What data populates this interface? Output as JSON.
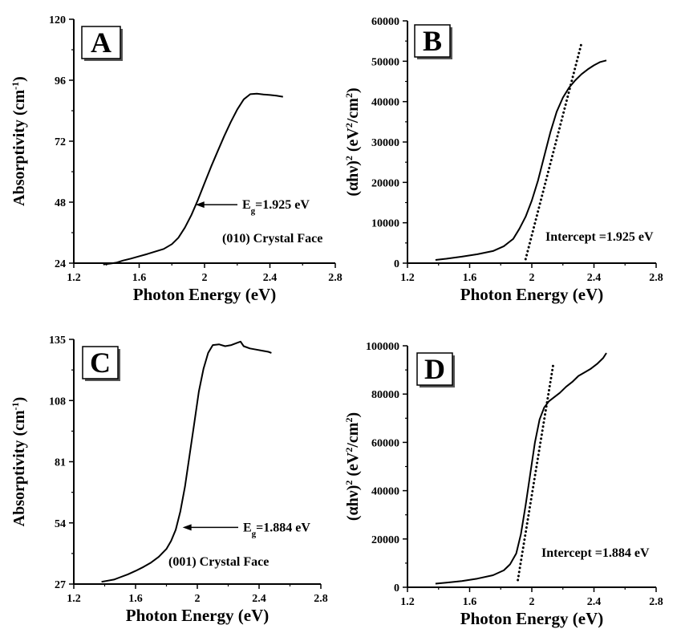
{
  "chart_data": [
    {
      "id": "A",
      "type": "line",
      "panel_label": "A",
      "xlabel": "Photon Energy (eV)",
      "ylabel_main": "Absorptivity (cm",
      "ylabel_sup": "-1",
      "ylabel_close": ")",
      "xlim": [
        1.2,
        2.8
      ],
      "ylim": [
        24,
        120
      ],
      "xticks": [
        1.2,
        1.6,
        2.0,
        2.4,
        2.8
      ],
      "xtick_labels": [
        "1.2",
        "1.6",
        "2",
        "2.4",
        "2.8"
      ],
      "yticks": [
        24,
        48,
        72,
        96,
        120
      ],
      "ytick_labels": [
        "24",
        "48",
        "72",
        "96",
        "120"
      ],
      "series": [
        {
          "style": "solid",
          "x": [
            1.38,
            1.42,
            1.46,
            1.5,
            1.55,
            1.6,
            1.65,
            1.7,
            1.75,
            1.8,
            1.84,
            1.88,
            1.92,
            1.96,
            2.0,
            2.04,
            2.08,
            2.12,
            2.16,
            2.2,
            2.24,
            2.28,
            2.32,
            2.36,
            2.4,
            2.44,
            2.48
          ],
          "y": [
            23.5,
            23.8,
            24.2,
            25,
            25.8,
            26.7,
            27.6,
            28.6,
            29.6,
            31.5,
            34,
            38,
            43,
            49,
            55.5,
            62,
            68,
            74,
            79.5,
            84.5,
            88.5,
            90.5,
            90.7,
            90.4,
            90.2,
            89.9,
            89.5
          ]
        }
      ],
      "annotation": {
        "text_main": "E",
        "text_sub": "g",
        "text_rest": "=1.925 eV",
        "arrow_to": [
          1.925,
          47
        ]
      },
      "note": "(010)  Crystal Face"
    },
    {
      "id": "B",
      "type": "line",
      "panel_label": "B",
      "xlabel": "Photon Energy (eV)",
      "ylabel_main": "(αhν)",
      "ylabel_sup": "2",
      "ylabel_rest": " (eV",
      "ylabel_sup2": "2",
      "ylabel_close": "/cm",
      "ylabel_sup3": "2",
      "ylabel_end": ")",
      "xlim": [
        1.2,
        2.8
      ],
      "ylim": [
        0,
        60000
      ],
      "xticks": [
        1.2,
        1.6,
        2.0,
        2.4,
        2.8
      ],
      "xtick_labels": [
        "1.2",
        "1.6",
        "2",
        "2.4",
        "2.8"
      ],
      "yticks": [
        0,
        10000,
        20000,
        30000,
        40000,
        50000,
        60000
      ],
      "ytick_labels": [
        "0",
        "10000",
        "20000",
        "30000",
        "40000",
        "50000",
        "60000"
      ],
      "series": [
        {
          "style": "solid",
          "x": [
            1.38,
            1.45,
            1.55,
            1.65,
            1.75,
            1.82,
            1.88,
            1.92,
            1.96,
            2.0,
            2.04,
            2.08,
            2.12,
            2.16,
            2.2,
            2.24,
            2.28,
            2.32,
            2.36,
            2.4,
            2.44,
            2.48
          ],
          "y": [
            800,
            1100,
            1600,
            2200,
            3000,
            4200,
            6000,
            8500,
            11500,
            15500,
            20500,
            26500,
            32500,
            37500,
            41000,
            43500,
            45300,
            46800,
            48000,
            49000,
            49800,
            50200
          ]
        },
        {
          "style": "dotted",
          "x": [
            1.96,
            2.32
          ],
          "y": [
            1000,
            54500
          ]
        }
      ],
      "annotation_text": "Intercept =1.925  eV"
    },
    {
      "id": "C",
      "type": "line",
      "panel_label": "C",
      "xlabel": "Photon Energy (eV)",
      "ylabel_main": "Absorptivity (cm",
      "ylabel_sup": "-1",
      "ylabel_close": ")",
      "xlim": [
        1.2,
        2.8
      ],
      "ylim": [
        27,
        135
      ],
      "xticks": [
        1.2,
        1.6,
        2.0,
        2.4,
        2.8
      ],
      "xtick_labels": [
        "1.2",
        "1.6",
        "2",
        "2.4",
        "2.8"
      ],
      "yticks": [
        27,
        54,
        81,
        108,
        135
      ],
      "ytick_labels": [
        "27",
        "54",
        "81",
        "108",
        "135"
      ],
      "series": [
        {
          "style": "solid",
          "x": [
            1.38,
            1.42,
            1.46,
            1.5,
            1.55,
            1.6,
            1.65,
            1.7,
            1.75,
            1.8,
            1.83,
            1.86,
            1.89,
            1.92,
            1.95,
            1.98,
            2.01,
            2.04,
            2.07,
            2.1,
            2.14,
            2.18,
            2.22,
            2.26,
            2.28,
            2.3,
            2.34,
            2.38,
            2.42,
            2.46,
            2.48
          ],
          "y": [
            28,
            28.5,
            29,
            30,
            31.3,
            32.8,
            34.5,
            36.5,
            39,
            42.5,
            46,
            51,
            59,
            70,
            84,
            98,
            112,
            122,
            129,
            132.5,
            132.8,
            132,
            132.5,
            133.5,
            134,
            132,
            131,
            130.5,
            130,
            129.5,
            129
          ]
        }
      ],
      "annotation": {
        "text_main": "E",
        "text_sub": "g",
        "text_rest": "=1.884 eV",
        "arrow_to": [
          1.884,
          52
        ]
      },
      "note": "(001)  Crystal Face"
    },
    {
      "id": "D",
      "type": "line",
      "panel_label": "D",
      "xlabel": "Photon Energy (eV)",
      "ylabel_main": "(αhν)",
      "ylabel_sup": "2",
      "ylabel_rest": " (eV",
      "ylabel_sup2": "2",
      "ylabel_close": "/cm",
      "ylabel_sup3": "2",
      "ylabel_end": ")",
      "xlim": [
        1.2,
        2.8
      ],
      "ylim": [
        0,
        100000
      ],
      "xticks": [
        1.2,
        1.6,
        2.0,
        2.4,
        2.8
      ],
      "xtick_labels": [
        "1.2",
        "1.6",
        "2",
        "2.4",
        "2.8"
      ],
      "yticks": [
        0,
        20000,
        40000,
        60000,
        80000,
        100000
      ],
      "ytick_labels": [
        "0",
        "20000",
        "40000",
        "60000",
        "80000",
        "100000"
      ],
      "series": [
        {
          "style": "solid",
          "x": [
            1.38,
            1.45,
            1.55,
            1.65,
            1.75,
            1.82,
            1.86,
            1.9,
            1.93,
            1.96,
            1.99,
            2.02,
            2.05,
            2.08,
            2.11,
            2.14,
            2.18,
            2.22,
            2.26,
            2.3,
            2.34,
            2.38,
            2.42,
            2.46,
            2.48
          ],
          "y": [
            1500,
            1900,
            2600,
            3600,
            5000,
            7000,
            9500,
            14000,
            22000,
            34000,
            47000,
            60000,
            69500,
            74500,
            77000,
            78500,
            80500,
            83000,
            85000,
            87500,
            89000,
            90500,
            92500,
            95000,
            97000
          ]
        },
        {
          "style": "dotted",
          "x": [
            1.91,
            2.14
          ],
          "y": [
            3000,
            93000
          ]
        }
      ],
      "annotation_text": "Intercept =1.884 eV"
    }
  ]
}
